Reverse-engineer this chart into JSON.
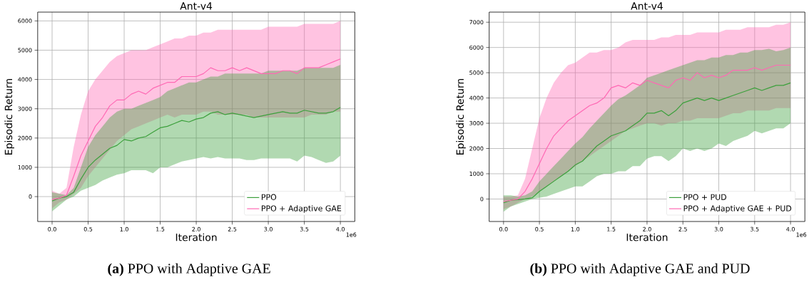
{
  "chart_data": [
    {
      "type": "line",
      "title": "Ant-v4",
      "xlabel": "Iteration",
      "ylabel": "Episodic Return",
      "annotations": [
        "1e6",
        "**(a)**  PPO with Adaptive GAE"
      ],
      "x": [
        0,
        0.1,
        0.2,
        0.3,
        0.4,
        0.5,
        0.6,
        0.7,
        0.8,
        0.9,
        1.0,
        1.1,
        1.2,
        1.3,
        1.4,
        1.5,
        1.6,
        1.7,
        1.8,
        1.9,
        2.0,
        2.1,
        2.2,
        2.3,
        2.4,
        2.5,
        2.6,
        2.7,
        2.8,
        2.9,
        3.0,
        3.1,
        3.2,
        3.3,
        3.4,
        3.5,
        3.6,
        3.7,
        3.8,
        3.9,
        4.0
      ],
      "xlim": [
        -0.2,
        4.2
      ],
      "ylim": [
        -850,
        6300
      ],
      "xticks": [
        {
          "value": 0,
          "label": "0.0"
        },
        {
          "value": 0.5,
          "label": "0.5"
        },
        {
          "value": 1,
          "label": "1.0"
        },
        {
          "value": 1.5,
          "label": "1.5"
        },
        {
          "value": 2,
          "label": "2.0"
        },
        {
          "value": 2.5,
          "label": "2.5"
        },
        {
          "value": 3,
          "label": "3.0"
        },
        {
          "value": 3.5,
          "label": "3.5"
        },
        {
          "value": 4,
          "label": "4.0"
        }
      ],
      "yticks": [
        0,
        1000,
        2000,
        3000,
        4000,
        5000,
        6000
      ],
      "grid": true,
      "legend": "bottom right",
      "marker": "none",
      "line_style": "solid",
      "series": [
        {
          "name": "PPO",
          "color": "#3ca03c",
          "values": [
            -150,
            -50,
            0,
            150,
            600,
            1000,
            1250,
            1450,
            1650,
            1750,
            1950,
            1900,
            2000,
            2050,
            2200,
            2350,
            2400,
            2500,
            2600,
            2550,
            2650,
            2700,
            2850,
            2900,
            2800,
            2850,
            2800,
            2750,
            2700,
            2750,
            2800,
            2850,
            2900,
            2850,
            2850,
            2950,
            2900,
            2850,
            2850,
            2900,
            3050
          ],
          "lower": [
            -500,
            -300,
            -100,
            0,
            200,
            300,
            400,
            550,
            650,
            750,
            800,
            900,
            900,
            900,
            800,
            1000,
            1000,
            1100,
            1200,
            1250,
            1300,
            1350,
            1300,
            1350,
            1300,
            1300,
            1300,
            1250,
            1250,
            1300,
            1300,
            1300,
            1300,
            1300,
            1200,
            1400,
            1350,
            1250,
            1150,
            1200,
            1400
          ],
          "upper": [
            150,
            100,
            50,
            300,
            1000,
            1700,
            2100,
            2400,
            2700,
            2900,
            3000,
            3000,
            3100,
            3200,
            3300,
            3400,
            3600,
            3700,
            3800,
            3900,
            3900,
            4000,
            4100,
            4100,
            4200,
            4200,
            4200,
            4200,
            4200,
            4200,
            4300,
            4300,
            4300,
            4300,
            4300,
            4400,
            4400,
            4400,
            4400,
            4400,
            4500
          ]
        },
        {
          "name": "PPO + Adaptive GAE",
          "color": "#ff69b4",
          "values": [
            -100,
            -50,
            50,
            700,
            1400,
            1900,
            2400,
            2700,
            3100,
            3300,
            3300,
            3500,
            3600,
            3500,
            3700,
            3800,
            3900,
            3900,
            4100,
            4100,
            4100,
            4200,
            4400,
            4300,
            4300,
            4400,
            4300,
            4400,
            4300,
            4200,
            4200,
            4200,
            4300,
            4300,
            4200,
            4400,
            4400,
            4400,
            4500,
            4600,
            4700
          ],
          "lower": [
            -400,
            -200,
            -100,
            100,
            300,
            700,
            1000,
            1300,
            1600,
            1900,
            2100,
            2300,
            2400,
            2500,
            2600,
            2700,
            2800,
            2700,
            2800,
            2800,
            2800,
            2900,
            2900,
            2800,
            2800,
            2800,
            2800,
            2800,
            2700,
            2700,
            2700,
            2700,
            2700,
            2700,
            2700,
            2700,
            2800,
            2800,
            2800,
            2900,
            2900
          ],
          "upper": [
            200,
            100,
            300,
            1700,
            2800,
            3600,
            4000,
            4300,
            4600,
            4800,
            4900,
            5000,
            5000,
            5000,
            5100,
            5200,
            5300,
            5400,
            5400,
            5500,
            5500,
            5600,
            5600,
            5700,
            5700,
            5700,
            5700,
            5700,
            5700,
            5700,
            5800,
            5800,
            5800,
            5800,
            5800,
            5900,
            5900,
            5900,
            5900,
            5900,
            6000
          ]
        }
      ]
    },
    {
      "type": "line",
      "title": "Ant-v4",
      "xlabel": "Iteration",
      "ylabel": "Episodic Return",
      "annotations": [
        "1e6",
        "**(b)** PPO with Adaptive GAE and PUD"
      ],
      "x": [
        0,
        0.1,
        0.2,
        0.3,
        0.4,
        0.5,
        0.6,
        0.7,
        0.8,
        0.9,
        1.0,
        1.1,
        1.2,
        1.3,
        1.4,
        1.5,
        1.6,
        1.7,
        1.8,
        1.9,
        2.0,
        2.1,
        2.2,
        2.3,
        2.4,
        2.5,
        2.6,
        2.7,
        2.8,
        2.9,
        3.0,
        3.1,
        3.2,
        3.3,
        3.4,
        3.5,
        3.6,
        3.7,
        3.8,
        3.9,
        4.0
      ],
      "xlim": [
        -0.2,
        4.2
      ],
      "ylim": [
        -890,
        7400
      ],
      "xticks": [
        {
          "value": 0,
          "label": "0.0"
        },
        {
          "value": 0.5,
          "label": "0.5"
        },
        {
          "value": 1,
          "label": "1.0"
        },
        {
          "value": 1.5,
          "label": "1.5"
        },
        {
          "value": 2,
          "label": "2.0"
        },
        {
          "value": 2.5,
          "label": "2.5"
        },
        {
          "value": 3,
          "label": "3.0"
        },
        {
          "value": 3.5,
          "label": "3.5"
        },
        {
          "value": 4,
          "label": "4.0"
        }
      ],
      "yticks": [
        0,
        1000,
        2000,
        3000,
        4000,
        5000,
        6000,
        7000
      ],
      "grid": true,
      "legend": "bottom right",
      "marker": "none",
      "line_style": "solid",
      "series": [
        {
          "name": "PPO + PUD",
          "color": "#3ca03c",
          "values": [
            -150,
            -50,
            -30,
            0,
            50,
            300,
            500,
            700,
            900,
            1100,
            1350,
            1500,
            1800,
            2100,
            2300,
            2500,
            2600,
            2700,
            2900,
            3100,
            3400,
            3400,
            3500,
            3300,
            3500,
            3800,
            3900,
            4000,
            3900,
            4000,
            3900,
            4000,
            4100,
            4200,
            4300,
            4400,
            4300,
            4400,
            4500,
            4500,
            4600
          ],
          "lower": [
            -500,
            -300,
            -200,
            -100,
            0,
            50,
            100,
            200,
            300,
            400,
            500,
            500,
            700,
            900,
            1000,
            1000,
            1100,
            1100,
            1300,
            1300,
            1600,
            1700,
            1700,
            1500,
            1700,
            2000,
            1900,
            2000,
            1900,
            2000,
            2200,
            2100,
            2300,
            2400,
            2500,
            2700,
            2600,
            2700,
            2800,
            2800,
            3000
          ],
          "upper": [
            150,
            150,
            100,
            150,
            300,
            700,
            1000,
            1300,
            1600,
            1900,
            2200,
            2450,
            2800,
            3100,
            3400,
            3700,
            3950,
            4100,
            4300,
            4500,
            4800,
            4900,
            5000,
            5100,
            5200,
            5300,
            5400,
            5500,
            5500,
            5600,
            5600,
            5700,
            5700,
            5800,
            5800,
            5900,
            5900,
            5950,
            5850,
            5900,
            6000
          ]
        },
        {
          "name": "PPO + Adaptive GAE + PUD",
          "color": "#ff69b4",
          "values": [
            -100,
            -50,
            0,
            300,
            800,
            1400,
            2000,
            2500,
            2800,
            3100,
            3300,
            3500,
            3700,
            3800,
            4000,
            4400,
            4500,
            4400,
            4600,
            4500,
            4700,
            4600,
            4500,
            4400,
            4700,
            4800,
            4700,
            5000,
            4800,
            4900,
            4800,
            4900,
            5100,
            5100,
            5100,
            5200,
            5100,
            5200,
            5300,
            5300,
            5300
          ],
          "lower": [
            -400,
            -300,
            -150,
            0,
            100,
            300,
            500,
            700,
            900,
            1100,
            1300,
            1500,
            1700,
            1900,
            2100,
            2300,
            2500,
            2700,
            2800,
            2900,
            3000,
            3000,
            2900,
            3000,
            3000,
            3100,
            3100,
            3200,
            3200,
            3200,
            3200,
            3300,
            3400,
            3400,
            3500,
            3500,
            3500,
            3500,
            3600,
            3600,
            3600
          ],
          "upper": [
            100,
            100,
            150,
            800,
            2000,
            3200,
            4000,
            4600,
            5000,
            5300,
            5400,
            5600,
            5800,
            5800,
            5900,
            5900,
            6000,
            6200,
            6300,
            6300,
            6300,
            6300,
            6400,
            6400,
            6500,
            6500,
            6500,
            6600,
            6600,
            6600,
            6600,
            6700,
            6700,
            6700,
            6800,
            6800,
            6800,
            6800,
            6900,
            6900,
            7000
          ]
        }
      ]
    }
  ]
}
